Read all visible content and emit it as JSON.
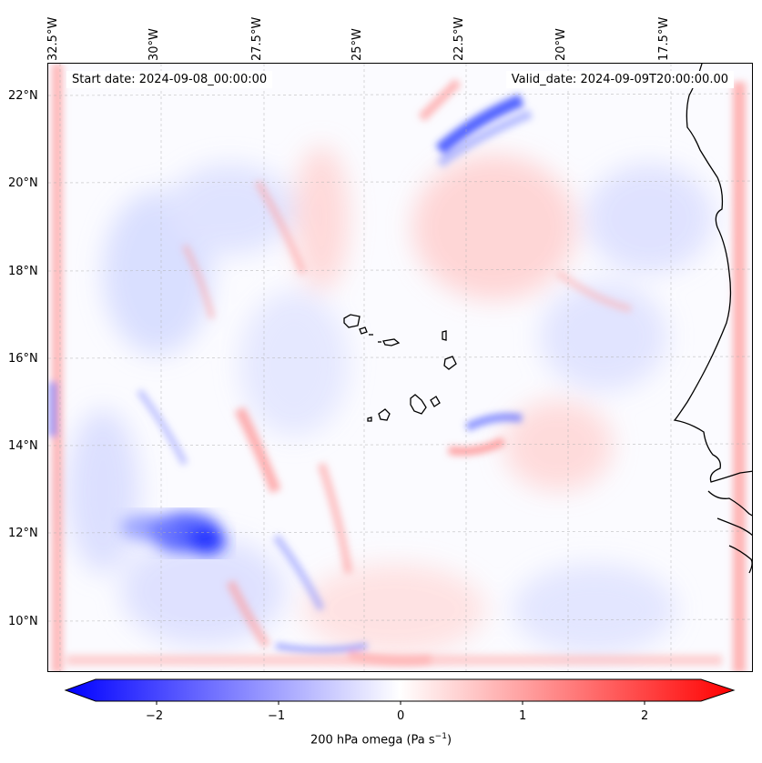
{
  "header": {
    "start_date": "Start date: 2024-09-08_00:00:00",
    "valid_date": "Valid_date: 2024-09-09T20:00:00.00"
  },
  "map": {
    "lon_labels": [
      "32.5°W",
      "30°W",
      "27.5°W",
      "25°W",
      "22.5°W",
      "20°W",
      "17.5°W"
    ],
    "lat_labels": [
      "22°N",
      "20°N",
      "18°N",
      "16°N",
      "14°N",
      "12°N",
      "10°N"
    ],
    "field": "200 hPa omega",
    "colors": {
      "negative": "#0000ff",
      "neutral": "#ffffff",
      "positive": "#ff0000",
      "coast": "#000000"
    }
  },
  "colorbar": {
    "label_main": "200 hPa omega (Pa s",
    "label_sup": "−1",
    "label_end": ")",
    "ticks": [
      "−2",
      "−1",
      "0",
      "1",
      "2"
    ],
    "range": [
      -2.5,
      2.5
    ]
  }
}
